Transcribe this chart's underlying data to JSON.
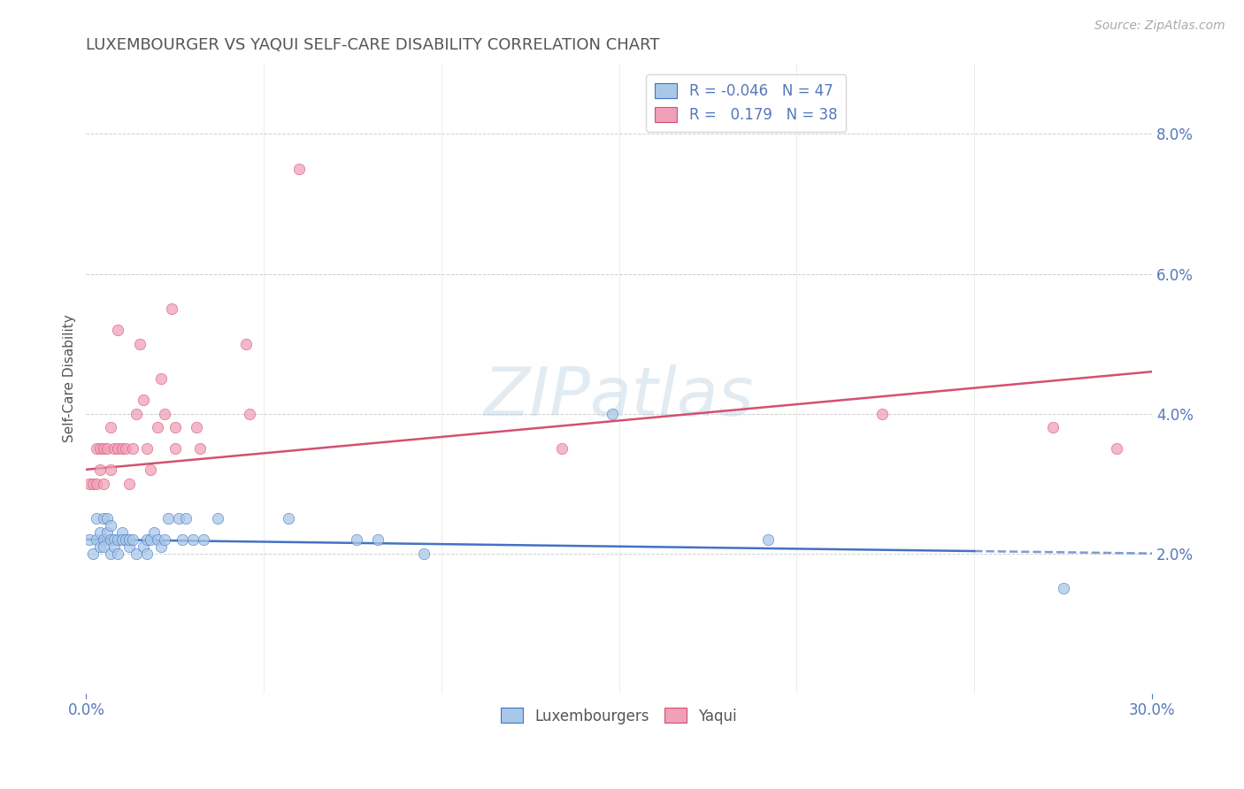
{
  "title": "LUXEMBOURGER VS YAQUI SELF-CARE DISABILITY CORRELATION CHART",
  "source": "Source: ZipAtlas.com",
  "ylabel": "Self-Care Disability",
  "xlim": [
    0.0,
    0.3
  ],
  "ylim": [
    0.0,
    0.09
  ],
  "xtick_positions": [
    0.0,
    0.3
  ],
  "xtick_labels": [
    "0.0%",
    "30.0%"
  ],
  "yticks_right": [
    0.02,
    0.04,
    0.06,
    0.08
  ],
  "ytick_labels_right": [
    "2.0%",
    "4.0%",
    "6.0%",
    "8.0%"
  ],
  "blue_color": "#a8c8e8",
  "pink_color": "#f0a0b8",
  "line_blue_color": "#4472c4",
  "line_pink_color": "#d45070",
  "legend_R_blue": "-0.046",
  "legend_N_blue": "47",
  "legend_R_pink": "0.179",
  "legend_N_pink": "38",
  "title_color": "#555555",
  "axis_label_color": "#5577bb",
  "tick_color": "#888888",
  "watermark": "ZIPatlas",
  "blue_x": [
    0.001,
    0.002,
    0.003,
    0.003,
    0.004,
    0.004,
    0.005,
    0.005,
    0.005,
    0.006,
    0.006,
    0.007,
    0.007,
    0.007,
    0.008,
    0.008,
    0.009,
    0.009,
    0.01,
    0.01,
    0.011,
    0.012,
    0.012,
    0.013,
    0.014,
    0.016,
    0.017,
    0.017,
    0.018,
    0.019,
    0.02,
    0.021,
    0.022,
    0.023,
    0.026,
    0.027,
    0.028,
    0.03,
    0.033,
    0.037,
    0.057,
    0.076,
    0.082,
    0.095,
    0.148,
    0.192,
    0.275
  ],
  "blue_y": [
    0.022,
    0.02,
    0.025,
    0.022,
    0.023,
    0.021,
    0.025,
    0.022,
    0.021,
    0.023,
    0.025,
    0.024,
    0.022,
    0.02,
    0.022,
    0.021,
    0.022,
    0.02,
    0.023,
    0.022,
    0.022,
    0.021,
    0.022,
    0.022,
    0.02,
    0.021,
    0.022,
    0.02,
    0.022,
    0.023,
    0.022,
    0.021,
    0.022,
    0.025,
    0.025,
    0.022,
    0.025,
    0.022,
    0.022,
    0.025,
    0.025,
    0.022,
    0.022,
    0.02,
    0.04,
    0.022,
    0.015
  ],
  "pink_x": [
    0.001,
    0.002,
    0.003,
    0.003,
    0.004,
    0.004,
    0.005,
    0.005,
    0.006,
    0.007,
    0.007,
    0.008,
    0.009,
    0.009,
    0.01,
    0.011,
    0.012,
    0.013,
    0.014,
    0.015,
    0.016,
    0.017,
    0.018,
    0.02,
    0.021,
    0.022,
    0.024,
    0.025,
    0.025,
    0.031,
    0.032,
    0.045,
    0.046,
    0.06,
    0.134,
    0.224,
    0.272,
    0.29
  ],
  "pink_y": [
    0.03,
    0.03,
    0.035,
    0.03,
    0.035,
    0.032,
    0.035,
    0.03,
    0.035,
    0.032,
    0.038,
    0.035,
    0.035,
    0.052,
    0.035,
    0.035,
    0.03,
    0.035,
    0.04,
    0.05,
    0.042,
    0.035,
    0.032,
    0.038,
    0.045,
    0.04,
    0.055,
    0.038,
    0.035,
    0.038,
    0.035,
    0.05,
    0.04,
    0.075,
    0.035,
    0.04,
    0.038,
    0.035
  ],
  "blue_trend_x": [
    0.0,
    0.25,
    0.3
  ],
  "blue_trend_y_start": 0.022,
  "blue_trend_y_end": 0.02,
  "pink_trend_y_start": 0.032,
  "pink_trend_y_end": 0.046,
  "background_color": "#ffffff",
  "grid_color": "#bbbbbb"
}
